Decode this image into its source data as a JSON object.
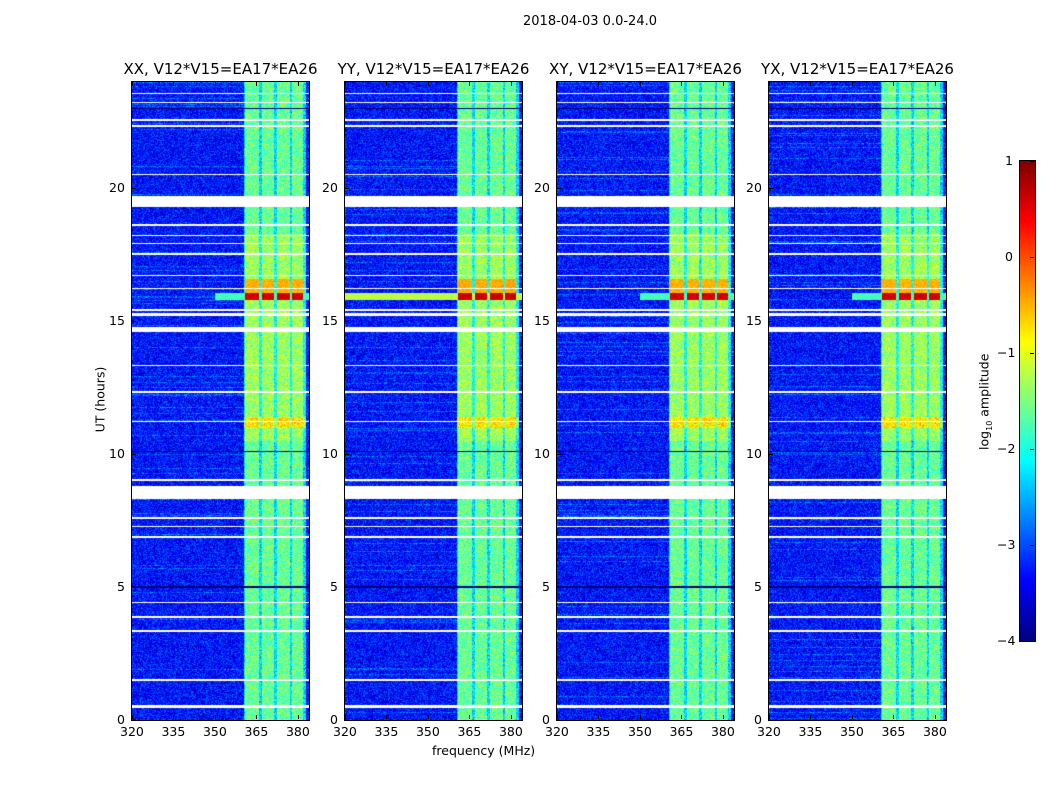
{
  "chart_data": {
    "type": "heatmap",
    "title": "2018-04-03 0.0-24.0",
    "xlabel": "frequency (MHz)",
    "ylabel": "UT (hours)",
    "xlim": [
      320,
      384
    ],
    "ylim": [
      0,
      24
    ],
    "xticks": [
      320,
      335,
      350,
      365,
      380
    ],
    "yticks": [
      0,
      5,
      10,
      15,
      20
    ],
    "panels": [
      {
        "title": "XX, V12*V15=EA17*EA26",
        "flare_strength": 1.0
      },
      {
        "title": "YY, V12*V15=EA17*EA26",
        "flare_strength": 1.3
      },
      {
        "title": "XY, V12*V15=EA17*EA26",
        "flare_strength": 1.0
      },
      {
        "title": "YX, V12*V15=EA17*EA26",
        "flare_strength": 1.0
      }
    ],
    "colorbar": {
      "label_prefix": "log",
      "label_sub": "10",
      "label_suffix": " amplitude",
      "range": [
        -4,
        1
      ],
      "ticks": [
        -4,
        -3,
        -2,
        -1,
        0,
        1
      ],
      "tick_labels": [
        "−4",
        "−3",
        "−2",
        "−1",
        "0",
        "1"
      ],
      "colormap": "jet"
    },
    "background_level": -3.3,
    "bands_mhz": [
      [
        361,
        366
      ],
      [
        367,
        371.5
      ],
      [
        372.5,
        377
      ],
      [
        378,
        382
      ]
    ],
    "band_level": -1.9,
    "flare_ut": [
      15.8,
      16.6
    ],
    "flagged_gaps_ut": [
      [
        0.45,
        0.55
      ],
      [
        1.45,
        1.55
      ],
      [
        3.3,
        3.38
      ],
      [
        3.85,
        3.92
      ],
      [
        4.4,
        4.45
      ],
      [
        6.85,
        6.92
      ],
      [
        7.25,
        7.3
      ],
      [
        7.55,
        7.62
      ],
      [
        8.3,
        8.8
      ],
      [
        9.0,
        9.05
      ],
      [
        11.2,
        11.25
      ],
      [
        12.3,
        12.36
      ],
      [
        13.3,
        13.35
      ],
      [
        14.6,
        14.8
      ],
      [
        15.2,
        15.3
      ],
      [
        15.4,
        15.45
      ],
      [
        16.2,
        16.25
      ],
      [
        16.7,
        16.75
      ],
      [
        17.5,
        17.55
      ],
      [
        17.9,
        17.95
      ],
      [
        18.2,
        18.25
      ],
      [
        18.6,
        18.65
      ],
      [
        19.3,
        19.7
      ],
      [
        20.5,
        20.55
      ],
      [
        22.3,
        22.4
      ],
      [
        22.55,
        22.6
      ],
      [
        23.2,
        23.25
      ],
      [
        23.55,
        23.6
      ]
    ]
  }
}
